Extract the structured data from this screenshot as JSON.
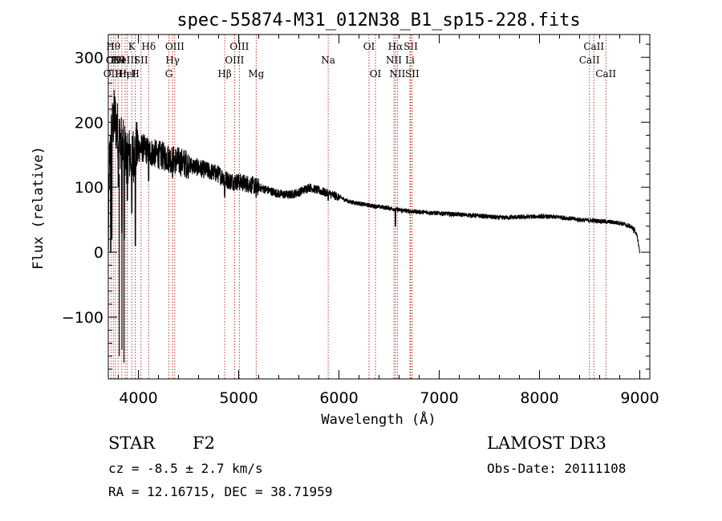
{
  "chart_data": {
    "type": "line",
    "title": "spec-55874-M31_012N38_B1_sp15-228.fits",
    "xlabel": "Wavelength (Å)",
    "ylabel": "Flux (relative)",
    "xlim": [
      3700,
      9100
    ],
    "ylim": [
      -195,
      335
    ],
    "xticks": [
      4000,
      5000,
      6000,
      7000,
      8000,
      9000
    ],
    "xtick_labels": [
      "4000",
      "5000",
      "6000",
      "7000",
      "8000",
      "9000"
    ],
    "yticks": [
      -100,
      0,
      100,
      200,
      300
    ],
    "ytick_labels": [
      "−100",
      "0",
      "100",
      "200",
      "300"
    ],
    "series": [
      {
        "name": "flux",
        "anchor_x": [
          3700,
          3710,
          3730,
          3760,
          3790,
          3820,
          3850,
          3880,
          3900,
          3940,
          3970,
          4000,
          4050,
          4100,
          4200,
          4300,
          4400,
          4500,
          4600,
          4700,
          4800,
          4900,
          5000,
          5100,
          5200,
          5300,
          5400,
          5500,
          5600,
          5700,
          5800,
          5900,
          6000,
          6100,
          6200,
          6300,
          6400,
          6500,
          6600,
          6700,
          6800,
          7000,
          7200,
          7400,
          7600,
          7800,
          8000,
          8200,
          8400,
          8600,
          8800,
          8900,
          8950,
          8980,
          9000
        ],
        "anchor_y": [
          0,
          130,
          180,
          210,
          190,
          170,
          160,
          150,
          150,
          150,
          155,
          160,
          160,
          155,
          150,
          145,
          140,
          135,
          130,
          125,
          120,
          110,
          108,
          105,
          100,
          95,
          90,
          88,
          92,
          100,
          95,
          90,
          85,
          78,
          75,
          72,
          70,
          68,
          65,
          63,
          62,
          60,
          58,
          56,
          53,
          54,
          55,
          54,
          50,
          48,
          45,
          40,
          35,
          20,
          0
        ],
        "features": [
          {
            "x": 3725,
            "y": 0
          },
          {
            "x": 3735,
            "y": 20
          },
          {
            "x": 3780,
            "y": 160
          },
          {
            "x": 3800,
            "y": 100
          },
          {
            "x": 3835,
            "y": 30
          },
          {
            "x": 3858,
            "y": 20
          },
          {
            "x": 3890,
            "y": 80
          },
          {
            "x": 3934,
            "y": 60
          },
          {
            "x": 3969,
            "y": 10
          },
          {
            "x": 4102,
            "y": 110
          },
          {
            "x": 4340,
            "y": 115
          },
          {
            "x": 4861,
            "y": 85
          },
          {
            "x": 5175,
            "y": 85
          },
          {
            "x": 5893,
            "y": 80
          },
          {
            "x": 6563,
            "y": 40
          },
          {
            "x": 8940,
            "y": 30
          }
        ]
      }
    ],
    "lines": [
      {
        "x": 3727,
        "row": 3,
        "label": "OII"
      },
      {
        "x": 3750,
        "row": 1,
        "label": "Hθ"
      },
      {
        "x": 3770,
        "row": 2,
        "label": "OIII"
      },
      {
        "x": 3798,
        "row": 2,
        "label": "Hθ"
      },
      {
        "x": 3835,
        "row": 3,
        "label": "Hη"
      },
      {
        "x": 3869,
        "row": 2,
        "label": "NeIII"
      },
      {
        "x": 3889,
        "row": 3,
        "label": "HeI"
      },
      {
        "x": 3934,
        "row": 1,
        "label": "K"
      },
      {
        "x": 3969,
        "row": 3,
        "label": "H"
      },
      {
        "x": 4026,
        "row": 2,
        "label": "SII"
      },
      {
        "x": 4102,
        "row": 1,
        "label": "Hδ"
      },
      {
        "x": 4304,
        "row": 3,
        "label": "G"
      },
      {
        "x": 4341,
        "row": 2,
        "label": "Hγ"
      },
      {
        "x": 4363,
        "row": 1,
        "label": "OIII"
      },
      {
        "x": 4861,
        "row": 3,
        "label": "Hβ"
      },
      {
        "x": 4959,
        "row": 2,
        "label": "OIII"
      },
      {
        "x": 5007,
        "row": 1,
        "label": "OIII"
      },
      {
        "x": 5175,
        "row": 3,
        "label": "Mg"
      },
      {
        "x": 5893,
        "row": 2,
        "label": "Na"
      },
      {
        "x": 6300,
        "row": 1,
        "label": "OI"
      },
      {
        "x": 6364,
        "row": 3,
        "label": "OI"
      },
      {
        "x": 6548,
        "row": 2,
        "label": "NII"
      },
      {
        "x": 6563,
        "row": 1,
        "label": "Hα"
      },
      {
        "x": 6583,
        "row": 3,
        "label": "NII"
      },
      {
        "x": 6708,
        "row": 2,
        "label": "Li"
      },
      {
        "x": 6716,
        "row": 1,
        "label": "SII"
      },
      {
        "x": 6731,
        "row": 3,
        "label": "SII"
      },
      {
        "x": 8498,
        "row": 2,
        "label": "CaII"
      },
      {
        "x": 8542,
        "row": 1,
        "label": "CaII"
      },
      {
        "x": 8662,
        "row": 3,
        "label": "CaII"
      }
    ]
  },
  "footer": {
    "class_label": "STAR",
    "subclass": "F2",
    "survey": "LAMOST DR3",
    "redshift": "cz = -8.5 ± 2.7 km/s",
    "obs_date": "Obs-Date: 20111108",
    "coords": "RA =  12.16715, DEC =  38.71959"
  }
}
